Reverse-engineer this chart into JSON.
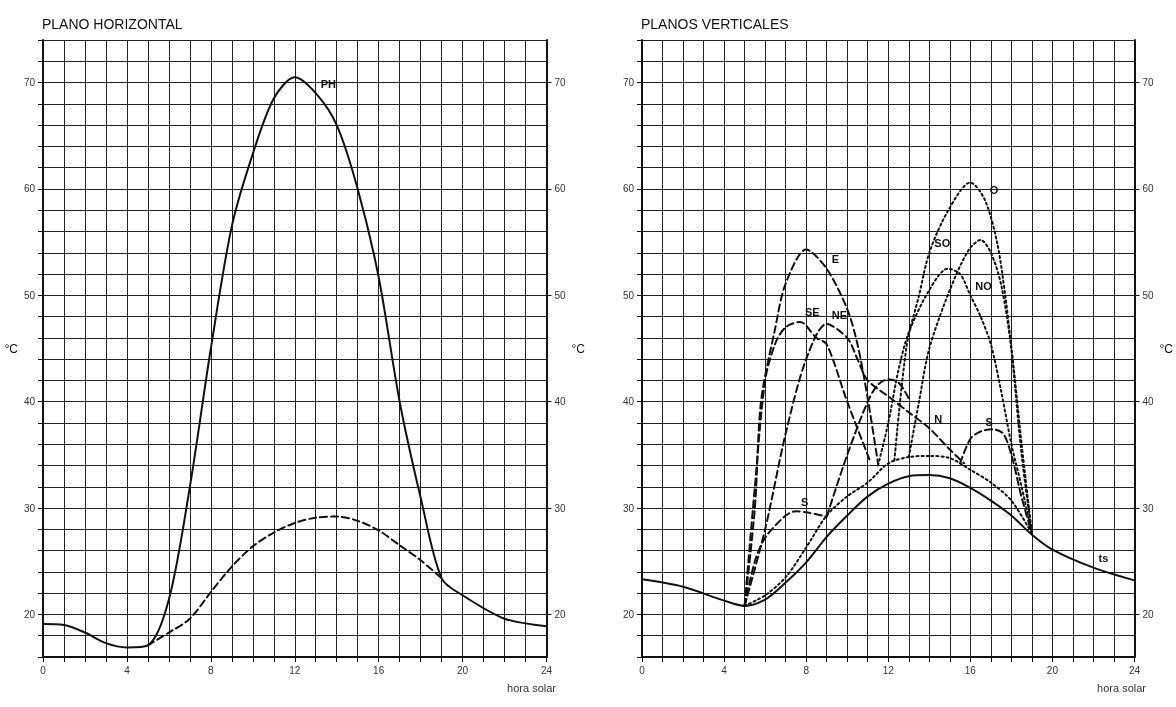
{
  "chart_data": [
    {
      "type": "line",
      "title": "PLANO HORIZONTAL",
      "xlabel": "hora solar",
      "ylabel": "°C",
      "y2label": "°C",
      "grid": true,
      "marker": "none",
      "xlim": [
        0,
        24
      ],
      "ylim": [
        16,
        74
      ],
      "y2lim": [
        16,
        74
      ],
      "xticks": [
        0,
        {
          "value": 1,
          "label": null
        },
        {
          "value": 2,
          "label": null
        },
        {
          "value": 3,
          "label": null
        },
        4,
        {
          "value": 5,
          "label": null
        },
        {
          "value": 6,
          "label": null
        },
        {
          "value": 7,
          "label": null
        },
        8,
        {
          "value": 9,
          "label": null
        },
        {
          "value": 10,
          "label": null
        },
        {
          "value": 11,
          "label": null
        },
        12,
        {
          "value": 13,
          "label": null
        },
        {
          "value": 14,
          "label": null
        },
        {
          "value": 15,
          "label": null
        },
        16,
        {
          "value": 17,
          "label": null
        },
        {
          "value": 18,
          "label": null
        },
        {
          "value": 19,
          "label": null
        },
        20,
        {
          "value": 21,
          "label": null
        },
        {
          "value": 22,
          "label": null
        },
        {
          "value": 23,
          "label": null
        },
        24
      ],
      "yticks": [
        {
          "value": 16,
          "label": null
        },
        {
          "value": 18,
          "label": null
        },
        20,
        {
          "value": 22,
          "label": null
        },
        {
          "value": 24,
          "label": null
        },
        {
          "value": 26,
          "label": null
        },
        {
          "value": 28,
          "label": null
        },
        30,
        {
          "value": 32,
          "label": null
        },
        {
          "value": 34,
          "label": null
        },
        {
          "value": 36,
          "label": null
        },
        {
          "value": 38,
          "label": null
        },
        40,
        {
          "value": 42,
          "label": null
        },
        {
          "value": 44,
          "label": null
        },
        {
          "value": 46,
          "label": null
        },
        {
          "value": 48,
          "label": null
        },
        50,
        {
          "value": 52,
          "label": null
        },
        {
          "value": 54,
          "label": null
        },
        {
          "value": 56,
          "label": null
        },
        {
          "value": 58,
          "label": null
        },
        60,
        {
          "value": 62,
          "label": null
        },
        {
          "value": 64,
          "label": null
        },
        {
          "value": 66,
          "label": null
        },
        {
          "value": 68,
          "label": null
        },
        70,
        {
          "value": 72,
          "label": null
        },
        {
          "value": 74,
          "label": null
        }
      ],
      "y2ticks": [
        20,
        30,
        40,
        50,
        60,
        70
      ],
      "series": [
        {
          "color": "#111111",
          "line_style": "solid",
          "x": [
            0,
            1,
            2,
            3,
            4,
            5,
            6,
            7,
            8,
            9,
            10,
            11,
            12,
            13,
            14,
            15,
            16,
            17,
            18,
            19,
            20,
            22,
            24
          ],
          "values": [
            19.1,
            19,
            18.3,
            17.3,
            16.9,
            17.1,
            21.4,
            32,
            45,
            56.5,
            63.3,
            68.5,
            70.5,
            69,
            66,
            60,
            51.7,
            40,
            31,
            23.4,
            21.8,
            19.6,
            18.9
          ]
        },
        {
          "color": "#111111",
          "line_style": "dashed",
          "x": [
            5,
            6,
            7,
            8,
            9,
            10,
            11,
            12,
            13,
            14,
            15,
            16,
            17,
            18,
            19
          ],
          "values": [
            17.1,
            18.3,
            19.6,
            22.1,
            24.5,
            26.4,
            27.7,
            28.6,
            29.1,
            29.2,
            28.8,
            27.9,
            26.5,
            25.1,
            23.4
          ]
        }
      ],
      "annotations": [
        {
          "text": "PH",
          "x": 13,
          "y": 69
        }
      ]
    },
    {
      "type": "line",
      "title": "PLANOS VERTICALES",
      "xlabel": "hora solar",
      "y2label": "°C",
      "grid": true,
      "marker": "none",
      "xlim": [
        0,
        24
      ],
      "ylim": [
        16,
        74
      ],
      "y2lim": [
        16,
        74
      ],
      "yticks": [
        {
          "value": 16,
          "label": null
        },
        {
          "value": 18,
          "label": null
        },
        20,
        {
          "value": 22,
          "label": null
        },
        {
          "value": 24,
          "label": null
        },
        {
          "value": 26,
          "label": null
        },
        {
          "value": 28,
          "label": null
        },
        30,
        {
          "value": 32,
          "label": null
        },
        {
          "value": 34,
          "label": null
        },
        {
          "value": 36,
          "label": null
        },
        {
          "value": 38,
          "label": null
        },
        40,
        {
          "value": 42,
          "label": null
        },
        {
          "value": 44,
          "label": null
        },
        {
          "value": 46,
          "label": null
        },
        {
          "value": 48,
          "label": null
        },
        50,
        {
          "value": 52,
          "label": null
        },
        {
          "value": 54,
          "label": null
        },
        {
          "value": 56,
          "label": null
        },
        {
          "value": 58,
          "label": null
        },
        60,
        {
          "value": 62,
          "label": null
        },
        {
          "value": 64,
          "label": null
        },
        {
          "value": 66,
          "label": null
        },
        {
          "value": 68,
          "label": null
        },
        70,
        {
          "value": 72,
          "label": null
        },
        {
          "value": 74,
          "label": null
        }
      ],
      "xticks": [
        0,
        {
          "value": 1,
          "label": null
        },
        {
          "value": 2,
          "label": null
        },
        {
          "value": 3,
          "label": null
        },
        4,
        {
          "value": 5,
          "label": null
        },
        {
          "value": 6,
          "label": null
        },
        {
          "value": 7,
          "label": null
        },
        8,
        {
          "value": 9,
          "label": null
        },
        {
          "value": 10,
          "label": null
        },
        {
          "value": 11,
          "label": null
        },
        12,
        {
          "value": 13,
          "label": null
        },
        {
          "value": 14,
          "label": null
        },
        {
          "value": 15,
          "label": null
        },
        16,
        {
          "value": 17,
          "label": null
        },
        {
          "value": 18,
          "label": null
        },
        {
          "value": 19,
          "label": null
        },
        20,
        {
          "value": 21,
          "label": null
        },
        {
          "value": 22,
          "label": null
        },
        {
          "value": 23,
          "label": null
        },
        24
      ],
      "y2ticks": [
        20,
        30,
        40,
        50,
        60,
        70
      ],
      "series": [
        {
          "color": "#111111",
          "line_style": "solid",
          "x": [
            0,
            2,
            4,
            5,
            6,
            7,
            8,
            9,
            10,
            11,
            12,
            13,
            14,
            15,
            16,
            17,
            18,
            19,
            20,
            22,
            24
          ],
          "values": [
            23.3,
            22.6,
            21.3,
            20.8,
            21.4,
            23,
            24.9,
            27.3,
            29.3,
            31.1,
            32.3,
            33,
            33.1,
            32.8,
            31.9,
            30.7,
            29.3,
            27.5,
            26.1,
            24.4,
            23.2
          ]
        },
        {
          "color": "#111111",
          "line_style": "dotted",
          "x": [
            5,
            6,
            7,
            8,
            9,
            10,
            11,
            12,
            13,
            14,
            15,
            16,
            17,
            18,
            19
          ],
          "values": [
            20.8,
            21.8,
            23.5,
            26.3,
            29.3,
            31.1,
            32.4,
            34.2,
            34.8,
            34.9,
            34.7,
            33.6,
            32.4,
            30.7,
            27.6
          ]
        },
        {
          "color": "#111111",
          "line_style": "dashed",
          "x": [
            5,
            5.5,
            6,
            7,
            7.5,
            8,
            9
          ],
          "values": [
            20.8,
            25,
            27.2,
            29.3,
            29.7,
            29.6,
            29.2
          ]
        },
        {
          "color": "#111111",
          "line_style": "dashed",
          "x": [
            15.5,
            16,
            16.5,
            17.1,
            17.6,
            18,
            18.5,
            19
          ],
          "values": [
            34.2,
            36.5,
            37.2,
            37.4,
            37,
            35,
            31,
            27.6
          ]
        },
        {
          "color": "#111111",
          "line_style": "dashed",
          "x": [
            5,
            5.5,
            5.8,
            6.5,
            7,
            8,
            9,
            10,
            10.5,
            11,
            11.5
          ],
          "values": [
            20.8,
            30,
            40,
            47,
            51.1,
            54.3,
            52.5,
            48.7,
            45.4,
            40.3,
            34.2
          ]
        },
        {
          "color": "#111111",
          "line_style": "dashed",
          "x": [
            5,
            5.5,
            6,
            6.5,
            7,
            7.7,
            8.5,
            9,
            10,
            11.1
          ],
          "values": [
            20.8,
            32,
            42,
            45.5,
            47,
            47.5,
            46,
            45.4,
            40,
            34.5
          ]
        },
        {
          "color": "#111111",
          "line_style": "dashed",
          "x": [
            5,
            6,
            7,
            8,
            9,
            10,
            10.5,
            11,
            12,
            13,
            14,
            15,
            15.7
          ],
          "values": [
            20.8,
            28,
            37,
            44,
            47.3,
            46,
            44,
            42,
            40.5,
            39,
            37.5,
            35.5,
            34.2
          ]
        },
        {
          "color": "#111111",
          "line_style": "dashed",
          "x": [
            9,
            10,
            11,
            11.5,
            12,
            12.5,
            13
          ],
          "values": [
            29.2,
            35,
            40,
            41.6,
            42.1,
            41.8,
            40.3
          ]
        },
        {
          "color": "#111111",
          "line_style": "dotted",
          "x": [
            12.3,
            12.9,
            13.5,
            14,
            14.9,
            16,
            16.7,
            17.3,
            17.7,
            18,
            18.5,
            19
          ],
          "values": [
            34.5,
            45.3,
            50,
            54,
            57.9,
            60.6,
            59,
            55,
            50,
            45,
            35,
            27.6
          ]
        },
        {
          "color": "#111111",
          "line_style": "dotted",
          "x": [
            13,
            13.5,
            14,
            15,
            15.9,
            16.5,
            17,
            17.5,
            18,
            18.5,
            19
          ],
          "values": [
            34.8,
            40,
            45,
            50.5,
            54.2,
            55.2,
            54,
            51,
            45,
            36,
            27.6
          ]
        },
        {
          "color": "#111111",
          "line_style": "dotted",
          "x": [
            11.5,
            12,
            12.5,
            13,
            14,
            14.9,
            15.5,
            16,
            16.5,
            17,
            17.5,
            18,
            18.5,
            19
          ],
          "values": [
            34,
            38,
            43,
            46.5,
            50.5,
            52.5,
            52,
            50,
            48,
            45.4,
            41,
            36,
            32,
            27.6
          ]
        }
      ],
      "annotations": [
        {
          "text": "E",
          "x": 9,
          "y": 52.5
        },
        {
          "text": "SE",
          "x": 7.7,
          "y": 47.5
        },
        {
          "text": "NE",
          "x": 9,
          "y": 47.3
        },
        {
          "text": "O",
          "x": 16.7,
          "y": 59
        },
        {
          "text": "SO",
          "x": 14,
          "y": 54
        },
        {
          "text": "NO",
          "x": 16,
          "y": 50
        },
        {
          "text": "N",
          "x": 14,
          "y": 37.5
        },
        {
          "text": "S",
          "x": 7.5,
          "y": 29.7
        },
        {
          "text": "S",
          "x": 16.5,
          "y": 37.2
        },
        {
          "text": "ts",
          "x": 22,
          "y": 24.4
        }
      ]
    }
  ]
}
